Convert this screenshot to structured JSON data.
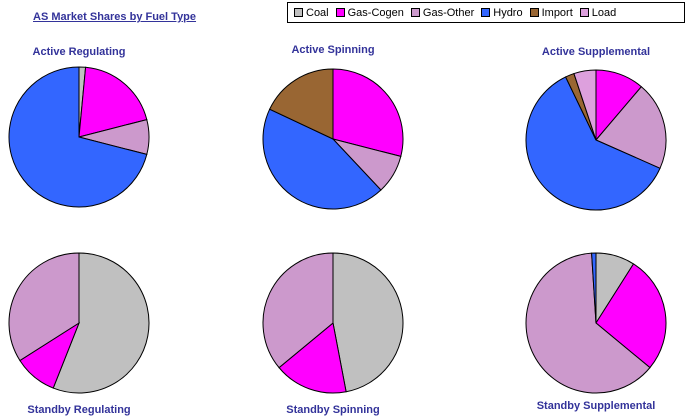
{
  "title": "AS Market Shares by Fuel Type",
  "legend": [
    {
      "label": "Coal",
      "color": "#c0c0c0"
    },
    {
      "label": "Gas-Cogen",
      "color": "#ff00ff"
    },
    {
      "label": "Gas-Other",
      "color": "#cc99cc"
    },
    {
      "label": "Hydro",
      "color": "#3366ff"
    },
    {
      "label": "Import",
      "color": "#996633"
    },
    {
      "label": "Load",
      "color": "#dda0dd"
    }
  ],
  "chart_data": [
    {
      "type": "pie",
      "title": "Active Regulating",
      "categories": [
        "Coal",
        "Gas-Cogen",
        "Gas-Other",
        "Hydro",
        "Import",
        "Load"
      ],
      "values": [
        1.5,
        19.5,
        8,
        71,
        0,
        0
      ]
    },
    {
      "type": "pie",
      "title": "Active Spinning",
      "categories": [
        "Coal",
        "Gas-Cogen",
        "Gas-Other",
        "Hydro",
        "Import",
        "Load"
      ],
      "values": [
        0,
        29,
        9,
        44,
        18,
        0
      ]
    },
    {
      "type": "pie",
      "title": "Active Supplemental",
      "categories": [
        "Coal",
        "Gas-Cogen",
        "Gas-Other",
        "Hydro",
        "Import",
        "Load"
      ],
      "values": [
        0,
        11,
        20,
        60,
        2,
        5
      ]
    },
    {
      "type": "pie",
      "title": "Standby Regulating",
      "categories": [
        "Coal",
        "Gas-Cogen",
        "Gas-Other",
        "Hydro",
        "Import",
        "Load"
      ],
      "values": [
        56,
        10,
        34,
        0,
        0,
        0
      ]
    },
    {
      "type": "pie",
      "title": "Standby Spinning",
      "categories": [
        "Coal",
        "Gas-Cogen",
        "Gas-Other",
        "Hydro",
        "Import",
        "Load"
      ],
      "values": [
        47,
        17,
        36,
        0,
        0,
        0
      ]
    },
    {
      "type": "pie",
      "title": "Standby Supplemental",
      "categories": [
        "Coal",
        "Gas-Cogen",
        "Gas-Other",
        "Hydro",
        "Import",
        "Load"
      ],
      "values": [
        9,
        27,
        63,
        1,
        0,
        0
      ]
    }
  ]
}
